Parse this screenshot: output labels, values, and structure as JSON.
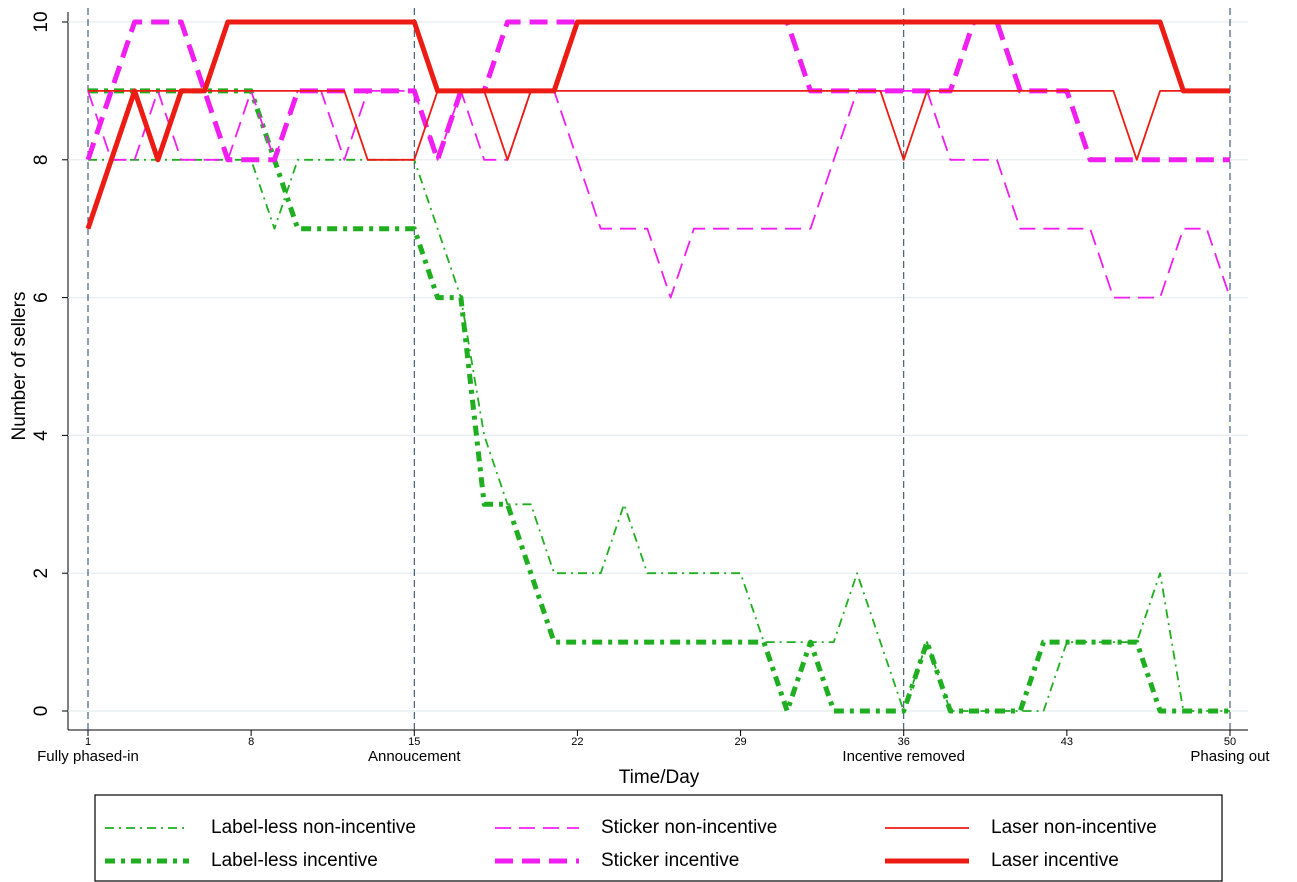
{
  "chart_data": {
    "type": "line",
    "y_label": "Number of sellers",
    "x_label": "Time/Day",
    "x": [
      1,
      2,
      3,
      4,
      5,
      6,
      7,
      8,
      9,
      10,
      11,
      12,
      13,
      14,
      15,
      16,
      17,
      18,
      19,
      20,
      21,
      22,
      23,
      24,
      25,
      26,
      27,
      28,
      29,
      30,
      31,
      32,
      33,
      34,
      35,
      36,
      37,
      38,
      39,
      40,
      41,
      42,
      43,
      44,
      45,
      46,
      47,
      48,
      49,
      50
    ],
    "xlim": [
      1,
      50
    ],
    "xticks": [
      1,
      8,
      15,
      22,
      29,
      36,
      43,
      50
    ],
    "ylim": [
      0,
      10
    ],
    "yticks": [
      0,
      2,
      4,
      6,
      8,
      10
    ],
    "grid": true,
    "legend": "bottom",
    "annotations": [
      {
        "x": 1,
        "label": "Fully phased-in"
      },
      {
        "x": 15,
        "label": "Annoucement"
      },
      {
        "x": 36,
        "label": "Incentive removed"
      },
      {
        "x": 50,
        "label": "Phasing out"
      }
    ],
    "series": [
      {
        "name": "Label-less non-incentive",
        "color": "#1fae1f",
        "line_style": "dashdot",
        "line_width": "thin",
        "values": [
          8,
          8,
          8,
          8,
          8,
          8,
          8,
          8,
          7,
          8,
          8,
          8,
          8,
          8,
          8,
          7,
          6,
          4,
          3,
          3,
          2,
          2,
          2,
          3,
          2,
          2,
          2,
          2,
          2,
          1,
          1,
          1,
          1,
          2,
          1,
          0,
          1,
          0,
          0,
          0,
          0,
          0,
          1,
          1,
          1,
          1,
          2,
          0,
          0,
          0
        ]
      },
      {
        "name": "Label-less incentive",
        "color": "#1fae1f",
        "line_style": "dashdot",
        "line_width": "thick",
        "values": [
          9,
          9,
          9,
          9,
          9,
          9,
          9,
          9,
          8,
          7,
          7,
          7,
          7,
          7,
          7,
          6,
          6,
          3,
          3,
          2,
          1,
          1,
          1,
          1,
          1,
          1,
          1,
          1,
          1,
          1,
          0,
          1,
          0,
          0,
          0,
          0,
          1,
          0,
          0,
          0,
          0,
          1,
          1,
          1,
          1,
          1,
          0,
          0,
          0,
          0
        ]
      },
      {
        "name": "Sticker non-incentive",
        "color": "#f01ef0",
        "line_style": "dash",
        "line_width": "thin",
        "values": [
          9,
          8,
          8,
          9,
          8,
          8,
          8,
          9,
          8,
          9,
          9,
          8,
          9,
          9,
          9,
          8,
          9,
          8,
          8,
          9,
          9,
          8,
          7,
          7,
          7,
          6,
          7,
          7,
          7,
          7,
          7,
          7,
          8,
          9,
          9,
          9,
          9,
          8,
          8,
          8,
          7,
          7,
          7,
          7,
          6,
          6,
          6,
          7,
          7,
          6
        ]
      },
      {
        "name": "Sticker incentive",
        "color": "#f01ef0",
        "line_style": "dash",
        "line_width": "thick",
        "values": [
          8,
          9,
          10,
          10,
          10,
          9,
          8,
          8,
          8,
          9,
          9,
          9,
          9,
          9,
          9,
          8,
          9,
          9,
          10,
          10,
          10,
          10,
          10,
          10,
          10,
          10,
          10,
          10,
          10,
          10,
          10,
          9,
          9,
          9,
          9,
          9,
          9,
          9,
          10,
          10,
          9,
          9,
          9,
          8,
          8,
          8,
          8,
          8,
          8,
          8
        ]
      },
      {
        "name": "Laser non-incentive",
        "color": "#ec1c14",
        "line_style": "solid",
        "line_width": "thin",
        "values": [
          9,
          9,
          9,
          9,
          9,
          9,
          9,
          9,
          9,
          9,
          9,
          9,
          8,
          8,
          8,
          9,
          9,
          9,
          8,
          9,
          9,
          9,
          9,
          9,
          9,
          9,
          9,
          9,
          9,
          9,
          9,
          9,
          9,
          9,
          9,
          8,
          9,
          9,
          9,
          9,
          9,
          9,
          9,
          9,
          9,
          8,
          9,
          9,
          9,
          9
        ]
      },
      {
        "name": "Laser incentive",
        "color": "#ec1c14",
        "line_style": "solid",
        "line_width": "thick",
        "values": [
          7,
          8,
          9,
          8,
          9,
          9,
          10,
          10,
          10,
          10,
          10,
          10,
          10,
          10,
          10,
          9,
          9,
          9,
          9,
          9,
          9,
          10,
          10,
          10,
          10,
          10,
          10,
          10,
          10,
          10,
          10,
          10,
          10,
          10,
          10,
          10,
          10,
          10,
          10,
          10,
          10,
          10,
          10,
          10,
          10,
          10,
          10,
          9,
          9,
          9
        ]
      }
    ]
  }
}
